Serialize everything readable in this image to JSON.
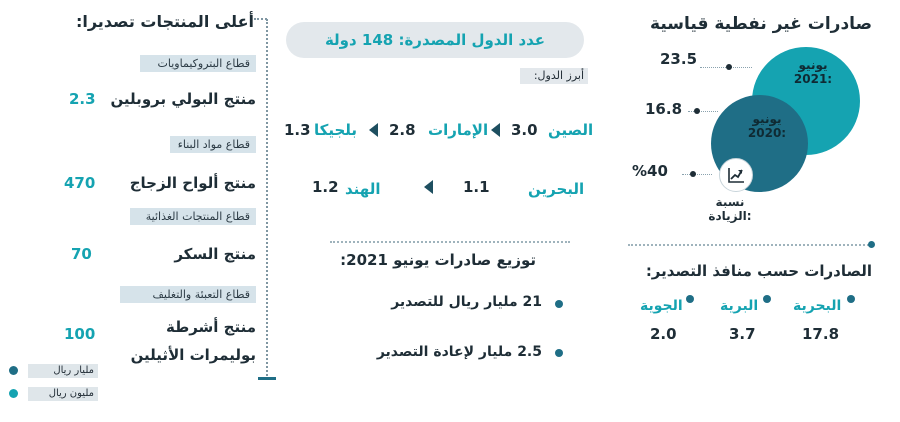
{
  "right_panel": {
    "title": "صادرات غير نفطية قياسية",
    "circle_2021": {
      "label": "يونيو\n2021",
      "line1": "يونيو",
      "line2": "2021:",
      "value": "23.5",
      "color": "#15a3b1"
    },
    "circle_2020": {
      "line1": "يونيو",
      "line2": "2020:",
      "value": "16.8",
      "color": "#1f6e86"
    },
    "increase": {
      "value": "%40",
      "line1": "نسبة",
      "line2": "الزيادة:",
      "icon": "chart-up-icon"
    },
    "ports_title": "الصادرات حسب منافذ التصدير:",
    "ports": [
      {
        "label": "البحرية",
        "value": "17.8"
      },
      {
        "label": "البرية",
        "value": "3.7"
      },
      {
        "label": "الجوية",
        "value": "2.0"
      }
    ]
  },
  "middle_panel": {
    "countries_count": "عدد الدول المصدرة: 148 دولة",
    "top_countries_label": "أبرز الدول:",
    "countries_row1": [
      {
        "name": "الصين",
        "value": "3.0"
      },
      {
        "name": "الإمارات",
        "value": "2.8"
      },
      {
        "name": "بلجيكا",
        "value": "1.3"
      }
    ],
    "countries_row2": [
      {
        "name": "البحرين",
        "value": "1.1"
      },
      {
        "name": "الهند",
        "value": "1.2"
      }
    ],
    "distribution_title": "توزيع صادرات يونيو 2021:",
    "distribution": [
      "21 مليار ريال للتصدير",
      "2.5 مليار لإعادة التصدير"
    ]
  },
  "left_panel": {
    "title": "أعلى المنتجات تصديرا:",
    "sectors": [
      {
        "sector": "قطاع البتروكيماويات",
        "product": "منتج البولي بروبلين",
        "value": "2.3"
      },
      {
        "sector": "قطاع مواد البناء",
        "product": "منتج ألواح الزجاج",
        "value": "470"
      },
      {
        "sector": "قطاع المنتجات الغذائية",
        "product": "منتج السكر",
        "value": "70"
      },
      {
        "sector": "قطاع التعبئة والتغليف",
        "product_line1": "منتج أشرطة",
        "product_line2": "بوليمرات الأثيلين",
        "value": "100"
      }
    ],
    "legend": [
      {
        "label": "مليار ريال",
        "color": "#1f6e86"
      },
      {
        "label": "مليون ريال",
        "color": "#15a3b1"
      }
    ]
  }
}
